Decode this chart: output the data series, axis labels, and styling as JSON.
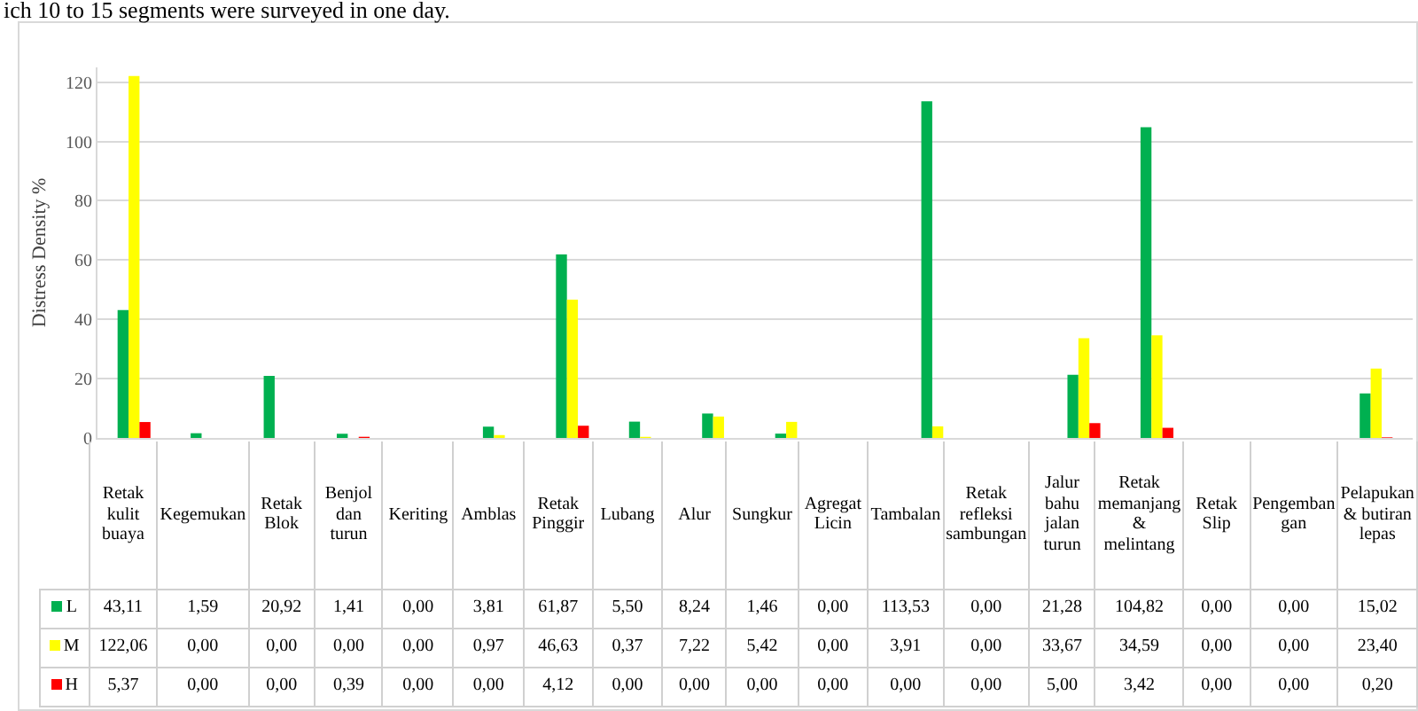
{
  "chart_data": {
    "type": "bar",
    "ylabel": "Distress Density %",
    "ylim": [
      0,
      125
    ],
    "legend": "bottom left",
    "yticks": [
      0,
      20,
      40,
      60,
      80,
      100,
      120
    ],
    "grid": "y",
    "annotations": [
      "ich 10 to 15 segments were surveyed in one day."
    ],
    "categories": [
      "Retak kulit buaya",
      "Kegemukan",
      "Retak Blok",
      "Benjol dan turun",
      "Keriting",
      "Amblas",
      "Retak Pinggir",
      "Lubang",
      "Alur",
      "Sungkur",
      "Agregat Licin",
      "Tambalan",
      "Retak refleksi sambungan",
      "Jalur bahu jalan turun",
      "Retak memanjang & melintang",
      "Retak Slip",
      "Pengemban gan",
      "Pelapukan & butiran lepas"
    ],
    "series": [
      {
        "name": "L",
        "color": "#00b050",
        "values": [
          43.11,
          1.59,
          20.92,
          1.41,
          0,
          3.81,
          61.87,
          5.5,
          8.24,
          1.46,
          0,
          113.53,
          0,
          21.28,
          104.82,
          0,
          0,
          15.02
        ],
        "value_labels": [
          "43,11",
          "1,59",
          "20,92",
          "1,41",
          "0,00",
          "3,81",
          "61,87",
          "5,50",
          "8,24",
          "1,46",
          "0,00",
          "113,53",
          "0,00",
          "21,28",
          "104,82",
          "0,00",
          "0,00",
          "15,02"
        ]
      },
      {
        "name": "M",
        "color": "#ffff00",
        "values": [
          122.06,
          0,
          0,
          0,
          0,
          0.97,
          46.63,
          0.37,
          7.22,
          5.42,
          0,
          3.91,
          0,
          33.67,
          34.59,
          0,
          0,
          23.4
        ],
        "value_labels": [
          "122,06",
          "0,00",
          "0,00",
          "0,00",
          "0,00",
          "0,97",
          "46,63",
          "0,37",
          "7,22",
          "5,42",
          "0,00",
          "3,91",
          "0,00",
          "33,67",
          "34,59",
          "0,00",
          "0,00",
          "23,40"
        ]
      },
      {
        "name": "H",
        "color": "#ff0000",
        "values": [
          5.37,
          0,
          0,
          0.39,
          0,
          0,
          4.12,
          0,
          0,
          0,
          0,
          0,
          0,
          5,
          3.42,
          0,
          0,
          0.2
        ],
        "value_labels": [
          "5,37",
          "0,00",
          "0,00",
          "0,39",
          "0,00",
          "0,00",
          "4,12",
          "0,00",
          "0,00",
          "0,00",
          "0,00",
          "0,00",
          "0,00",
          "5,00",
          "3,42",
          "0,00",
          "0,00",
          "0,20"
        ]
      }
    ]
  }
}
